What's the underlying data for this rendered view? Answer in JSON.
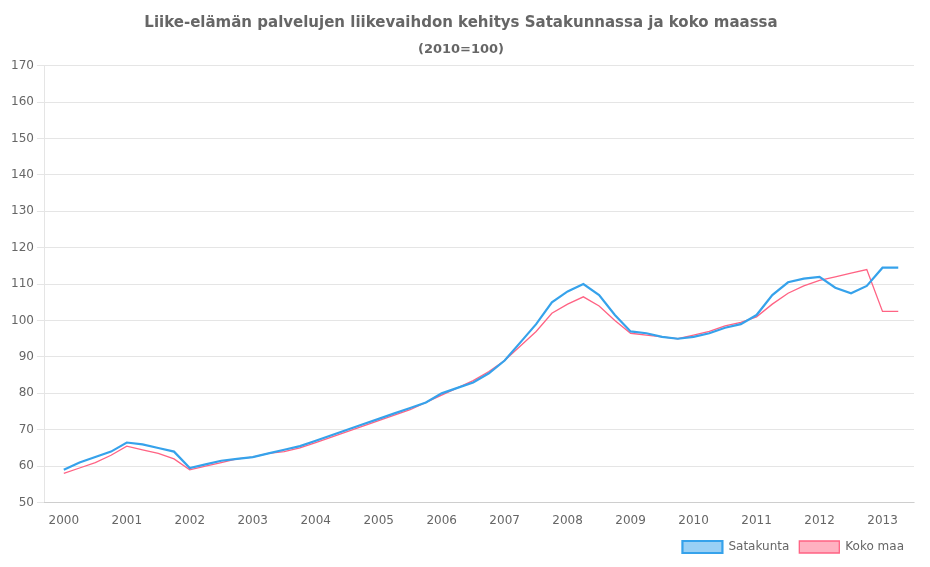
{
  "chart_data": {
    "type": "line",
    "title": "Liike-elämän palvelujen liikevaihdon kehitys Satakunnassa ja koko maassa",
    "subtitle": "(2010=100)",
    "x": [
      2000.0,
      2000.25,
      2000.5,
      2000.75,
      2001.0,
      2001.25,
      2001.5,
      2001.75,
      2002.0,
      2002.25,
      2002.5,
      2002.75,
      2003.0,
      2003.25,
      2003.5,
      2003.75,
      2004.0,
      2004.25,
      2004.5,
      2004.75,
      2005.0,
      2005.25,
      2005.5,
      2005.75,
      2006.0,
      2006.25,
      2006.5,
      2006.75,
      2007.0,
      2007.25,
      2007.5,
      2007.75,
      2008.0,
      2008.25,
      2008.5,
      2008.75,
      2009.0,
      2009.25,
      2009.5,
      2009.75,
      2010.0,
      2010.25,
      2010.5,
      2010.75,
      2011.0,
      2011.25,
      2011.5,
      2011.75,
      2012.0,
      2012.25,
      2012.5,
      2012.75,
      2013.0,
      2013.25
    ],
    "series": [
      {
        "name": "Satakunta",
        "values": [
          59.0,
          61.0,
          62.5,
          64.0,
          66.5,
          66.0,
          65.0,
          64.0,
          59.5,
          60.5,
          61.5,
          62.0,
          62.5,
          63.5,
          64.5,
          65.5,
          67.0,
          68.5,
          70.0,
          71.5,
          73.0,
          74.5,
          76.0,
          77.5,
          80.0,
          81.5,
          83.0,
          85.5,
          89.0,
          94.0,
          99.0,
          105.0,
          108.0,
          110.0,
          107.0,
          101.5,
          97.0,
          96.5,
          95.5,
          95.0,
          95.5,
          96.5,
          98.0,
          99.0,
          101.5,
          107.0,
          110.5,
          111.5,
          112.0,
          109.0,
          107.5,
          109.5,
          114.5,
          114.5
        ]
      },
      {
        "name": "Koko maa",
        "values": [
          58.0,
          59.5,
          61.0,
          63.0,
          65.5,
          64.5,
          63.5,
          62.0,
          59.0,
          60.0,
          61.0,
          62.0,
          62.5,
          63.5,
          64.0,
          65.0,
          66.5,
          68.0,
          69.5,
          71.0,
          72.5,
          74.0,
          75.5,
          77.5,
          79.5,
          81.5,
          83.5,
          86.0,
          89.0,
          93.0,
          97.0,
          102.0,
          104.5,
          106.5,
          104.0,
          100.0,
          96.5,
          96.0,
          95.5,
          95.0,
          96.0,
          97.0,
          98.5,
          99.5,
          101.0,
          104.5,
          107.5,
          109.5,
          111.0,
          112.0,
          113.0,
          114.0,
          102.5,
          102.5
        ]
      }
    ],
    "xlim": [
      1999.7,
      2013.5
    ],
    "xticks": [
      2000,
      2001,
      2002,
      2003,
      2004,
      2005,
      2006,
      2007,
      2008,
      2009,
      2010,
      2011,
      2012,
      2013
    ],
    "ylim": [
      50,
      170
    ],
    "yticks": [
      50,
      60,
      70,
      80,
      90,
      100,
      110,
      120,
      130,
      140,
      150,
      160,
      170
    ],
    "grid": "y",
    "legend": "lower right"
  }
}
